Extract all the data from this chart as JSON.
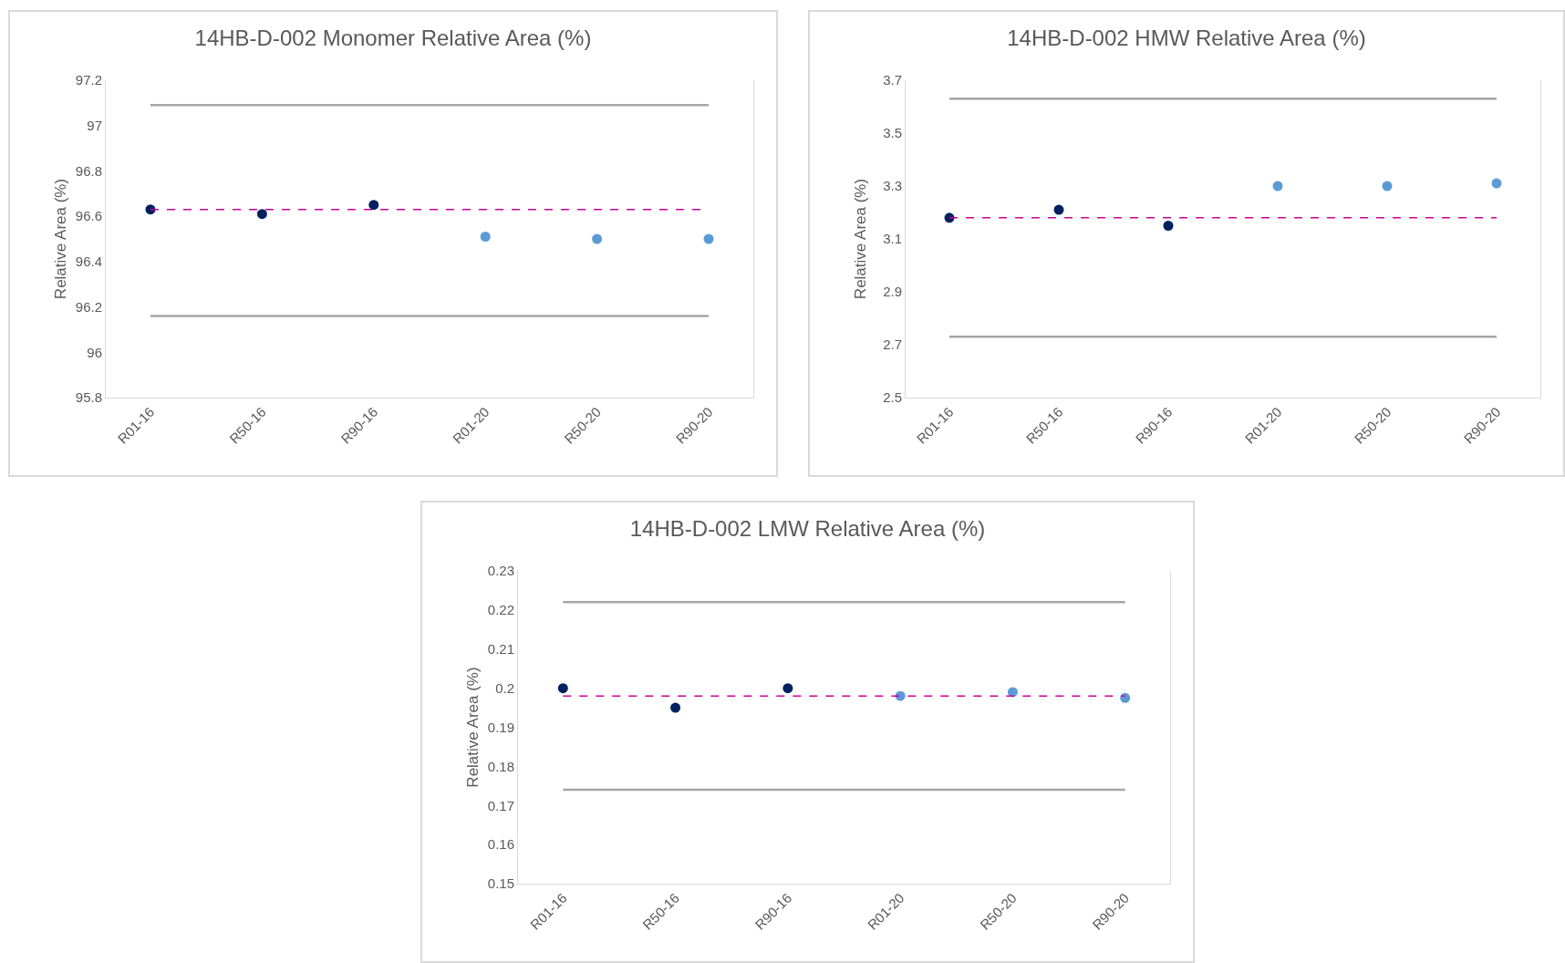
{
  "chart_data": [
    {
      "type": "scatter",
      "title": "14HB-D-002 Monomer Relative Area (%)",
      "ylabel": "Relative Area (%)",
      "categories": [
        "R01-16",
        "R50-16",
        "R90-16",
        "R01-20",
        "R50-20",
        "R90-20"
      ],
      "values": [
        96.63,
        96.61,
        96.65,
        96.51,
        96.5,
        96.5
      ],
      "colors": [
        "#002060",
        "#002060",
        "#002060",
        "#5b9bd5",
        "#5b9bd5",
        "#5b9bd5"
      ],
      "marker": "circle",
      "ylim": [
        95.8,
        97.2
      ],
      "yticks": [
        95.8,
        96,
        96.2,
        96.4,
        96.6,
        96.8,
        97,
        97.2
      ],
      "ref_lines": [
        {
          "axis": "y",
          "value": 97.09,
          "color": "#a6a6a6",
          "line_style": "solid"
        },
        {
          "axis": "y",
          "value": 96.63,
          "color": "#cc0099",
          "line_style": "dashed"
        },
        {
          "axis": "y",
          "value": 96.16,
          "color": "#a6a6a6",
          "line_style": "solid"
        }
      ]
    },
    {
      "type": "scatter",
      "title": "14HB-D-002 HMW Relative Area (%)",
      "ylabel": "Relative Area (%)",
      "categories": [
        "R01-16",
        "R50-16",
        "R90-16",
        "R01-20",
        "R50-20",
        "R90-20"
      ],
      "values": [
        3.18,
        3.21,
        3.15,
        3.3,
        3.3,
        3.31
      ],
      "colors": [
        "#002060",
        "#002060",
        "#002060",
        "#5b9bd5",
        "#5b9bd5",
        "#5b9bd5"
      ],
      "marker": "circle",
      "ylim": [
        2.5,
        3.7
      ],
      "yticks": [
        2.5,
        2.7,
        2.9,
        3.1,
        3.3,
        3.5,
        3.7
      ],
      "ref_lines": [
        {
          "axis": "y",
          "value": 3.63,
          "color": "#a6a6a6",
          "line_style": "solid"
        },
        {
          "axis": "y",
          "value": 3.18,
          "color": "#cc0099",
          "line_style": "dashed"
        },
        {
          "axis": "y",
          "value": 2.73,
          "color": "#a6a6a6",
          "line_style": "solid"
        }
      ]
    },
    {
      "type": "scatter",
      "title": "14HB-D-002 LMW Relative Area (%)",
      "ylabel": "Relative Area (%)",
      "categories": [
        "R01-16",
        "R50-16",
        "R90-16",
        "R01-20",
        "R50-20",
        "R90-20"
      ],
      "values": [
        0.2,
        0.195,
        0.2,
        0.198,
        0.199,
        0.1975
      ],
      "colors": [
        "#002060",
        "#002060",
        "#002060",
        "#5b9bd5",
        "#5b9bd5",
        "#5b9bd5"
      ],
      "marker": "circle",
      "ylim": [
        0.15,
        0.23
      ],
      "yticks": [
        0.15,
        0.16,
        0.17,
        0.18,
        0.19,
        0.2,
        0.21,
        0.22,
        0.23
      ],
      "ref_lines": [
        {
          "axis": "y",
          "value": 0.222,
          "color": "#a6a6a6",
          "line_style": "solid"
        },
        {
          "axis": "y",
          "value": 0.198,
          "color": "#cc0099",
          "line_style": "dashed"
        },
        {
          "axis": "y",
          "value": 0.174,
          "color": "#a6a6a6",
          "line_style": "solid"
        }
      ]
    }
  ]
}
